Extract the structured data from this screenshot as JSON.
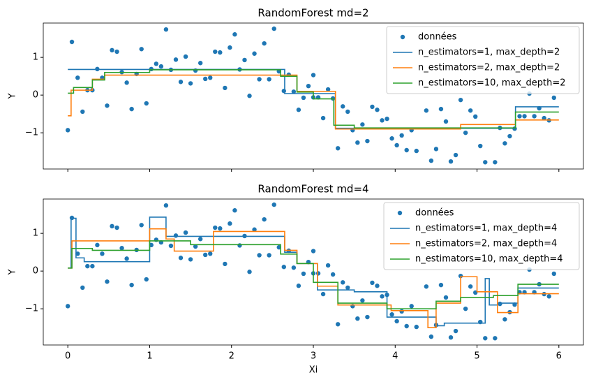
{
  "chart_data": [
    {
      "type": "line",
      "title": "RandomForest md=2",
      "ylabel": "Y",
      "show_xticklabels": false,
      "xlim": [
        -0.3,
        6.3
      ],
      "ylim": [
        -1.96,
        1.91
      ],
      "xticks": [
        0,
        1,
        2,
        3,
        4,
        5,
        6
      ],
      "yticks": [
        {
          "value": -1,
          "label": "−1"
        },
        0,
        1
      ],
      "legend": "upper right",
      "series": [
        {
          "name": "données",
          "type": "scatter",
          "color": "#1f77b4",
          "x": [
            0,
            0.05,
            0.12,
            0.18,
            0.24,
            0.3,
            0.36,
            0.42,
            0.48,
            0.54,
            0.6,
            0.66,
            0.72,
            0.78,
            0.84,
            0.9,
            0.96,
            1.02,
            1.08,
            1.14,
            1.2,
            1.26,
            1.32,
            1.38,
            1.44,
            1.5,
            1.56,
            1.62,
            1.68,
            1.74,
            1.8,
            1.86,
            1.92,
            1.98,
            2.04,
            2.1,
            2.16,
            2.22,
            2.28,
            2.34,
            2.4,
            2.46,
            2.52,
            2.58,
            2.64,
            2.7,
            2.76,
            2.82,
            2.88,
            2.94,
            3.0,
            3.0,
            3.06,
            3.12,
            3.18,
            3.24,
            3.3,
            3.36,
            3.42,
            3.48,
            3.54,
            3.6,
            3.66,
            3.72,
            3.78,
            3.84,
            3.9,
            3.96,
            4.02,
            4.08,
            4.14,
            4.2,
            4.26,
            4.38,
            4.44,
            4.5,
            4.56,
            4.62,
            4.68,
            4.74,
            4.8,
            4.86,
            4.92,
            4.98,
            5.04,
            5.1,
            5.22,
            5.28,
            5.34,
            5.4,
            5.46,
            5.52,
            5.58,
            5.64,
            5.7,
            5.76,
            5.82,
            5.88,
            5.94
          ],
          "values": [
            -0.93,
            1.41,
            0.46,
            -0.44,
            0.13,
            0.13,
            0.69,
            0.46,
            -0.28,
            1.19,
            1.15,
            0.61,
            0.33,
            -0.37,
            0.56,
            1.22,
            -0.22,
            0.69,
            0.83,
            0.76,
            1.74,
            0.67,
            0.94,
            0.35,
            1.02,
            0.31,
            0.65,
            0.85,
            0.43,
            0.46,
            1.15,
            1.13,
            0.19,
            1.26,
            1.61,
            0.68,
            0.93,
            -0.02,
            1.1,
            0.42,
            1.37,
            0.42,
            1.76,
            0.63,
            0.11,
            0.54,
            0.09,
            -0.39,
            -0.07,
            0.24,
            0.53,
            -0.06,
            -0.06,
            -0.61,
            0.15,
            -0.09,
            -1.41,
            -0.3,
            -0.44,
            -0.93,
            -1.26,
            -0.78,
            -1.22,
            -0.31,
            -0.39,
            -0.67,
            -0.63,
            -1.15,
            -1.33,
            -1.07,
            -1.46,
            -0.93,
            -1.48,
            -0.41,
            -1.74,
            -1.43,
            -0.37,
            -0.7,
            -1.76,
            -1.59,
            -0.13,
            -1.0,
            -0.41,
            -0.57,
            -1.35,
            -1.78,
            -1.78,
            -0.87,
            -1.28,
            -1.09,
            -0.89,
            -0.56,
            -0.56,
            0.04,
            -0.56,
            -0.35,
            -0.61,
            -0.67,
            -0.07
          ]
        },
        {
          "name": "n_estimators=1, max_depth=2",
          "color": "#1f77b4",
          "x": [
            0,
            2.65,
            2.65,
            3.27,
            3.27,
            5.47,
            5.47,
            6
          ],
          "values": [
            0.68,
            0.68,
            0.04,
            0.04,
            -0.88,
            -0.88,
            -0.31,
            -0.31
          ]
        },
        {
          "name": "n_estimators=2, max_depth=2",
          "color": "#ff7f0e",
          "x": [
            0,
            0.04,
            0.04,
            0.3,
            0.3,
            0.45,
            0.45,
            2.8,
            2.8,
            3.27,
            3.27,
            4.8,
            4.8,
            5.47,
            5.47,
            6
          ],
          "values": [
            -0.55,
            -0.55,
            0.13,
            0.13,
            0.42,
            0.42,
            0.53,
            0.53,
            0.1,
            0.1,
            -0.9,
            -0.9,
            -0.78,
            -0.78,
            -0.66,
            -0.66
          ]
        },
        {
          "name": "n_estimators=10, max_depth=2",
          "color": "#2ca02c",
          "x": [
            0,
            0.07,
            0.07,
            0.3,
            0.3,
            0.45,
            0.45,
            1.0,
            1.0,
            2.6,
            2.6,
            2.8,
            2.8,
            3.0,
            3.0,
            3.25,
            3.25,
            3.5,
            3.5,
            5.47,
            5.47,
            6
          ],
          "values": [
            0.05,
            0.05,
            0.2,
            0.2,
            0.4,
            0.4,
            0.6,
            0.6,
            0.67,
            0.67,
            0.5,
            0.5,
            0.08,
            0.08,
            -0.1,
            -0.1,
            -0.8,
            -0.8,
            -0.87,
            -0.87,
            -0.45,
            -0.45
          ]
        }
      ]
    },
    {
      "type": "line",
      "title": "RandomForest md=4",
      "xlabel": "Xi",
      "ylabel": "Y",
      "show_xticklabels": true,
      "xlim": [
        -0.3,
        6.3
      ],
      "ylim": [
        -1.96,
        1.91
      ],
      "xticks": [
        0,
        1,
        2,
        3,
        4,
        5,
        6
      ],
      "yticks": [
        {
          "value": -1,
          "label": "−1"
        },
        0,
        1
      ],
      "legend": "upper right",
      "series": [
        {
          "name": "données",
          "type": "scatter",
          "color": "#1f77b4",
          "x": [
            0,
            0.05,
            0.12,
            0.18,
            0.24,
            0.3,
            0.36,
            0.42,
            0.48,
            0.54,
            0.6,
            0.66,
            0.72,
            0.78,
            0.84,
            0.9,
            0.96,
            1.02,
            1.08,
            1.14,
            1.2,
            1.26,
            1.32,
            1.38,
            1.44,
            1.5,
            1.56,
            1.62,
            1.68,
            1.74,
            1.8,
            1.86,
            1.92,
            1.98,
            2.04,
            2.1,
            2.16,
            2.22,
            2.28,
            2.34,
            2.4,
            2.46,
            2.52,
            2.58,
            2.64,
            2.7,
            2.76,
            2.82,
            2.88,
            2.94,
            3.0,
            3.0,
            3.06,
            3.12,
            3.18,
            3.24,
            3.3,
            3.36,
            3.42,
            3.48,
            3.54,
            3.6,
            3.66,
            3.72,
            3.78,
            3.84,
            3.9,
            3.96,
            4.02,
            4.08,
            4.14,
            4.2,
            4.26,
            4.38,
            4.44,
            4.5,
            4.56,
            4.62,
            4.68,
            4.74,
            4.8,
            4.86,
            4.92,
            4.98,
            5.04,
            5.1,
            5.22,
            5.28,
            5.34,
            5.4,
            5.46,
            5.52,
            5.58,
            5.64,
            5.7,
            5.76,
            5.82,
            5.88,
            5.94
          ],
          "values": [
            -0.93,
            1.41,
            0.46,
            -0.44,
            0.13,
            0.13,
            0.69,
            0.46,
            -0.28,
            1.19,
            1.15,
            0.61,
            0.33,
            -0.37,
            0.56,
            1.22,
            -0.22,
            0.69,
            0.83,
            0.76,
            1.74,
            0.67,
            0.94,
            0.35,
            1.02,
            0.31,
            0.65,
            0.85,
            0.43,
            0.46,
            1.15,
            1.13,
            0.19,
            1.26,
            1.61,
            0.68,
            0.93,
            -0.02,
            1.1,
            0.42,
            1.37,
            0.42,
            1.76,
            0.63,
            0.11,
            0.54,
            0.09,
            -0.39,
            -0.07,
            0.24,
            0.53,
            -0.06,
            -0.06,
            -0.61,
            0.15,
            -0.09,
            -1.41,
            -0.3,
            -0.44,
            -0.93,
            -1.26,
            -0.78,
            -1.22,
            -0.31,
            -0.39,
            -0.67,
            -0.63,
            -1.15,
            -1.33,
            -1.07,
            -1.46,
            -0.93,
            -1.48,
            -0.41,
            -1.74,
            -1.43,
            -0.37,
            -0.7,
            -1.76,
            -1.59,
            -0.13,
            -1.0,
            -0.41,
            -0.57,
            -1.35,
            -1.78,
            -1.78,
            -0.87,
            -1.28,
            -1.09,
            -0.89,
            -0.56,
            -0.56,
            0.04,
            -0.56,
            -0.35,
            -0.61,
            -0.67,
            -0.07
          ]
        },
        {
          "name": "n_estimators=1, max_depth=4",
          "color": "#1f77b4",
          "x": [
            0,
            0.04,
            0.04,
            0.1,
            0.1,
            0.2,
            0.2,
            1.0,
            1.0,
            1.2,
            1.2,
            2.65,
            2.65,
            2.8,
            2.8,
            3.05,
            3.05,
            3.5,
            3.5,
            3.9,
            3.9,
            4.5,
            4.5,
            4.6,
            4.6,
            5.1,
            5.1,
            5.15,
            5.15,
            5.25,
            5.25,
            5.5,
            5.5,
            6
          ],
          "values": [
            0.08,
            0.08,
            1.4,
            1.4,
            0.35,
            0.35,
            0.25,
            0.25,
            1.43,
            1.43,
            0.92,
            0.92,
            0.5,
            0.5,
            0.2,
            0.2,
            -0.5,
            -0.5,
            -0.55,
            -0.55,
            -1.22,
            -1.22,
            -1.45,
            -1.45,
            -1.38,
            -1.38,
            -0.2,
            -0.2,
            -0.9,
            -0.9,
            -0.85,
            -0.85,
            -0.45,
            -0.45
          ]
        },
        {
          "name": "n_estimators=2, max_depth=4",
          "color": "#ff7f0e",
          "x": [
            0,
            0.05,
            0.05,
            1.0,
            1.0,
            1.2,
            1.2,
            1.3,
            1.3,
            1.78,
            1.78,
            2.65,
            2.65,
            2.8,
            2.8,
            3.05,
            3.05,
            3.3,
            3.3,
            3.95,
            3.95,
            4.4,
            4.4,
            4.5,
            4.5,
            4.8,
            4.8,
            5.0,
            5.0,
            5.25,
            5.25,
            5.5,
            5.5,
            6
          ],
          "values": [
            0.08,
            0.08,
            0.8,
            0.8,
            1.12,
            1.12,
            0.85,
            0.85,
            0.53,
            0.53,
            1.05,
            1.05,
            0.55,
            0.55,
            0.2,
            0.2,
            -0.4,
            -0.4,
            -0.9,
            -0.9,
            -1.05,
            -1.05,
            -1.5,
            -1.5,
            -0.85,
            -0.85,
            -0.15,
            -0.15,
            -0.55,
            -0.55,
            -1.1,
            -1.1,
            -0.6,
            -0.6
          ]
        },
        {
          "name": "n_estimators=10, max_depth=4",
          "color": "#2ca02c",
          "x": [
            0,
            0.05,
            0.05,
            0.3,
            0.3,
            1.0,
            1.0,
            1.5,
            1.5,
            2.6,
            2.6,
            2.8,
            2.8,
            3.0,
            3.0,
            3.3,
            3.3,
            3.9,
            3.9,
            4.5,
            4.5,
            4.8,
            4.8,
            5.2,
            5.2,
            5.5,
            5.5,
            6
          ],
          "values": [
            0.08,
            0.08,
            0.6,
            0.6,
            0.55,
            0.55,
            0.8,
            0.8,
            0.7,
            0.7,
            0.45,
            0.45,
            0.2,
            0.2,
            -0.3,
            -0.3,
            -0.85,
            -0.85,
            -1.0,
            -1.0,
            -0.8,
            -0.8,
            -0.7,
            -0.7,
            -0.65,
            -0.65,
            -0.35,
            -0.35
          ]
        }
      ]
    }
  ]
}
